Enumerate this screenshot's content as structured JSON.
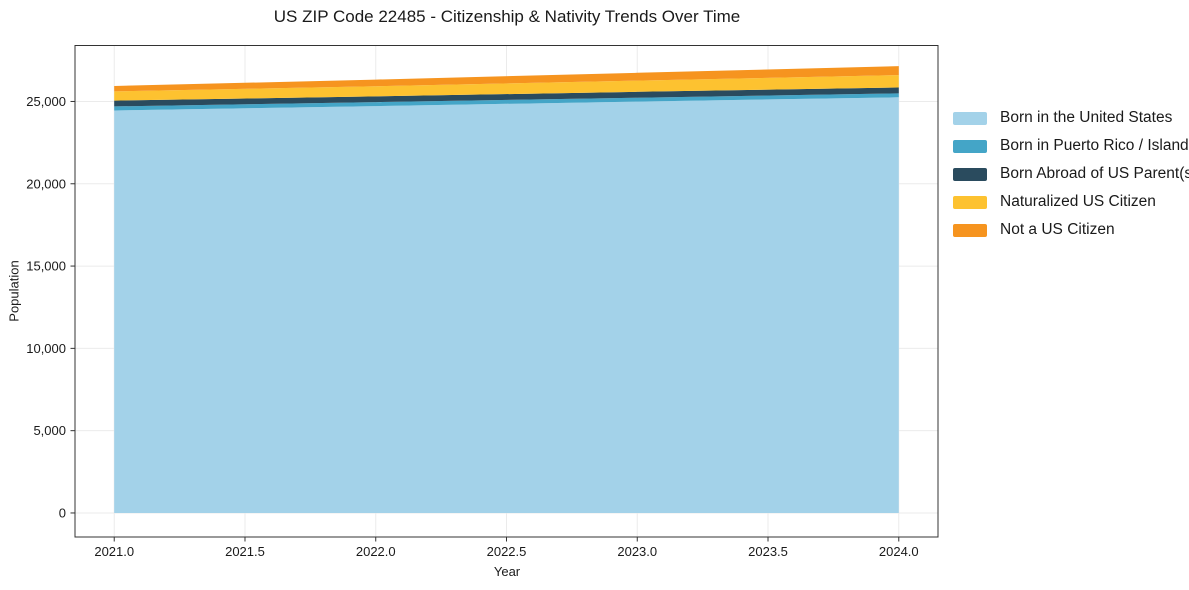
{
  "page": {
    "background": "#ffffff",
    "text_color": "#1a1a1a"
  },
  "chart_data": {
    "type": "area",
    "stacked": true,
    "title": "US ZIP Code 22485 - Citizenship & Nativity Trends Over Time",
    "xlabel": "Year",
    "ylabel": "Population",
    "x": [
      2021,
      2022,
      2023,
      2024
    ],
    "series": [
      {
        "name": "Born in the United States",
        "color": "#a3d2e9",
        "values": [
          24450,
          24720,
          24990,
          25250
        ]
      },
      {
        "name": "Born in Puerto Rico / Islands",
        "color": "#44a5c7",
        "values": [
          250,
          240,
          240,
          240
        ]
      },
      {
        "name": "Born Abroad of US Parent(s)",
        "color": "#2a4b5e",
        "values": [
          350,
          350,
          355,
          360
        ]
      },
      {
        "name": "Naturalized US Citizen",
        "color": "#fdc230",
        "values": [
          560,
          620,
          685,
          750
        ]
      },
      {
        "name": "Not a US Citizen",
        "color": "#f6941f",
        "values": [
          330,
          400,
          470,
          550
        ]
      }
    ],
    "stacked_totals": [
      25940,
      26330,
      26740,
      27150
    ],
    "xlim": [
      2020.85,
      2024.15
    ],
    "ylim": [
      -1460,
      28400
    ],
    "x_ticks": [
      2021.0,
      2021.5,
      2022.0,
      2022.5,
      2023.0,
      2023.5,
      2024.0
    ],
    "x_tick_labels": [
      "2021.0",
      "2021.5",
      "2022.0",
      "2022.5",
      "2023.0",
      "2023.5",
      "2024.0"
    ],
    "y_ticks": [
      0,
      5000,
      10000,
      15000,
      20000,
      25000
    ],
    "y_tick_labels": [
      "0",
      "5,000",
      "10,000",
      "15,000",
      "20,000",
      "25,000"
    ],
    "grid": true,
    "grid_color": "#ebebeb",
    "spine_color": "#333333",
    "legend_position": "right-outside",
    "legend_frame": false
  }
}
